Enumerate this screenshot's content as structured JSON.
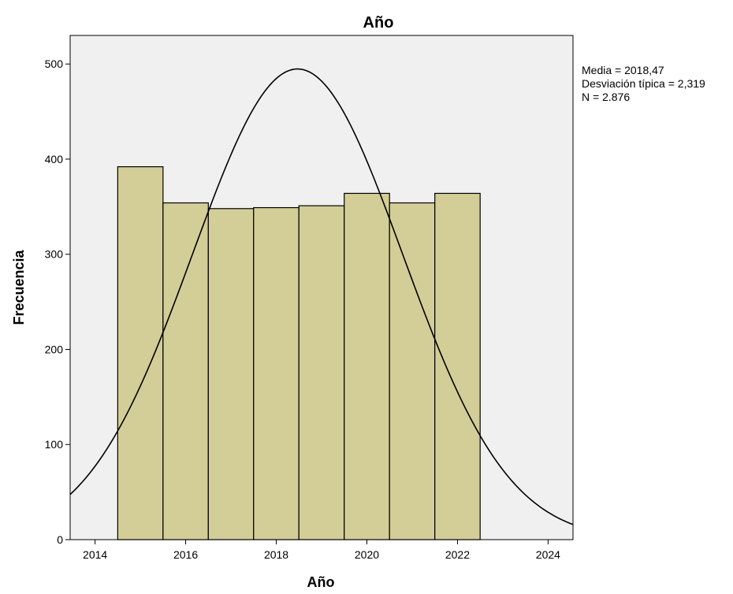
{
  "chart_data": {
    "type": "bar",
    "title": "Año",
    "xlabel": "Año",
    "ylabel": "Frecuencia",
    "bins": [
      {
        "x0": 2014.5,
        "x1": 2015.5,
        "value": 392
      },
      {
        "x0": 2015.5,
        "x1": 2016.5,
        "value": 354
      },
      {
        "x0": 2016.5,
        "x1": 2017.5,
        "value": 348
      },
      {
        "x0": 2017.5,
        "x1": 2018.5,
        "value": 349
      },
      {
        "x0": 2018.5,
        "x1": 2019.5,
        "value": 351
      },
      {
        "x0": 2019.5,
        "x1": 2020.5,
        "value": 364
      },
      {
        "x0": 2020.5,
        "x1": 2021.5,
        "value": 354
      },
      {
        "x0": 2021.5,
        "x1": 2022.5,
        "value": 364
      }
    ],
    "xlim": [
      2013.45,
      2024.55
    ],
    "ylim": [
      0,
      530
    ],
    "xticks": [
      {
        "value": 2014,
        "label": "2014"
      },
      {
        "value": 2016,
        "label": "2016"
      },
      {
        "value": 2018,
        "label": "2018"
      },
      {
        "value": 2020,
        "label": "2020"
      },
      {
        "value": 2022,
        "label": "2022"
      },
      {
        "value": 2024,
        "label": "2024"
      }
    ],
    "yticks": [
      {
        "value": 0,
        "label": "0"
      },
      {
        "value": 100,
        "label": "100"
      },
      {
        "value": 200,
        "label": "200"
      },
      {
        "value": 300,
        "label": "300"
      },
      {
        "value": 400,
        "label": "400"
      },
      {
        "value": 500,
        "label": "500"
      }
    ],
    "normal_curve": {
      "mean": 2018.47,
      "sd": 2.319,
      "n": 2876,
      "bin_width": 1
    },
    "stats": {
      "mean_label": "Media = 2018,47",
      "sd_label": "Desviación típica = 2,319",
      "n_label": "N = 2.876"
    },
    "grid": false,
    "legend": "top-right outside plot",
    "colors": {
      "plot_background": "#f0f0f0",
      "bar_fill": "#d3ce97",
      "bar_stroke": "#000000",
      "curve": "#000000",
      "frame": "#000000"
    }
  }
}
